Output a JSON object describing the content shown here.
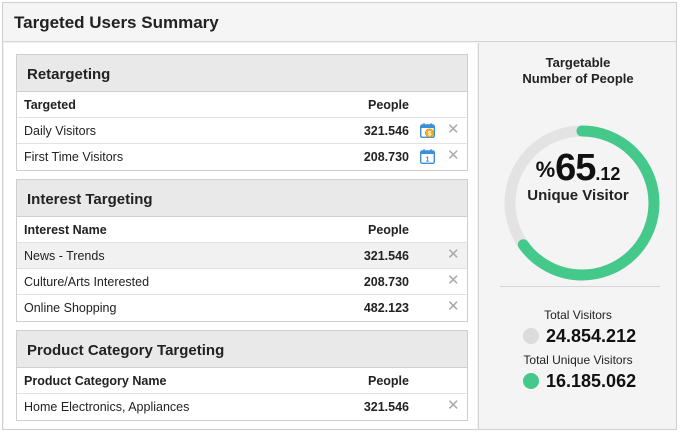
{
  "summary": {
    "title": "Targeted Users Summary"
  },
  "retargeting": {
    "title": "Retargeting",
    "col_name": "Targeted",
    "col_value": "People",
    "rows": [
      {
        "name": "Daily Visitors",
        "value": "321.546"
      },
      {
        "name": "First Time Visitors",
        "value": "208.730"
      }
    ]
  },
  "interest": {
    "title": "Interest Targeting",
    "col_name": "Interest Name",
    "col_value": "People",
    "rows": [
      {
        "name": "News - Trends",
        "value": "321.546"
      },
      {
        "name": "Culture/Arts Interested",
        "value": "208.730"
      },
      {
        "name": "Online Shopping",
        "value": "482.123"
      }
    ]
  },
  "product": {
    "title": "Product Category Targeting",
    "col_name": "Product Category Name",
    "col_value": "People",
    "rows": [
      {
        "name": "Home Electronics, Appliances",
        "value": "321.546"
      }
    ]
  },
  "targetable": {
    "title_line1": "Targetable",
    "title_line2": "Number of People",
    "percent_symbol": "%",
    "percent_int": "65",
    "percent_dec": ".12",
    "percent_value": 65.12,
    "unique_label": "Unique Visitor",
    "total_label": "Total Visitors",
    "total_value": "24.854.212",
    "unique_total_label": "Total Unique Visitors",
    "unique_total_value": "16.185.062"
  },
  "colors": {
    "accent": "#45c98b",
    "track": "#e3e3e3",
    "total_dot": "#dcdcdc",
    "calendar": "#3a8fd6",
    "coin": "#f2b021"
  },
  "icons": {
    "remove": "close-icon",
    "calendar_coin": "calendar-coin-icon",
    "calendar": "calendar-icon"
  }
}
